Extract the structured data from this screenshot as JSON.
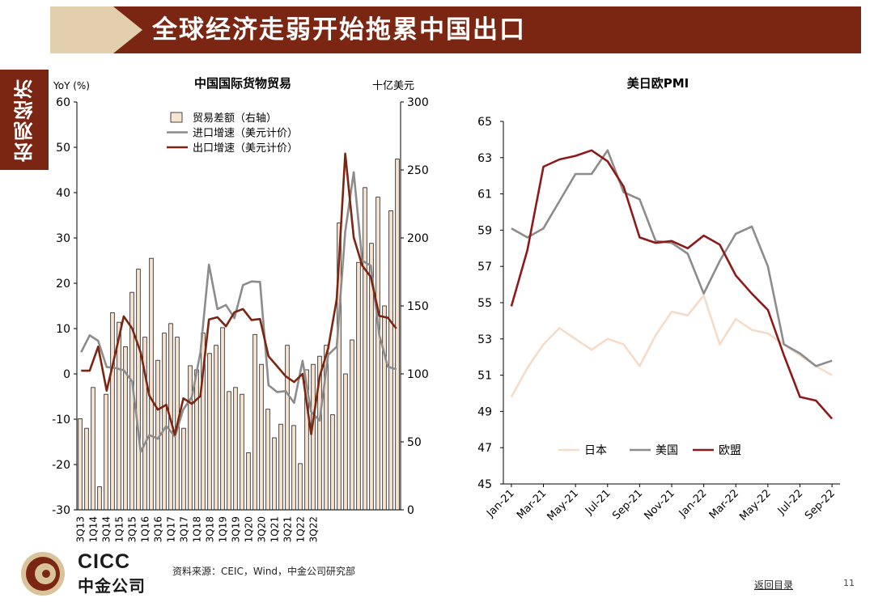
{
  "header": {
    "title": "全球经济走弱开始拖累中国出口"
  },
  "sidebar": {
    "label": "宏观经济"
  },
  "footer": {
    "source": "资料来源：CEIC，Wind，中金公司研究部",
    "back_link": "返回目录",
    "page_number": "11"
  },
  "logo": {
    "line1": "CICC",
    "line2": "中金公司"
  },
  "colors": {
    "brand": "#7b2612",
    "tan": "#e2cfae",
    "export": "#7b2612",
    "import": "#8c8c8c",
    "trade_bar": "#f8e3d0",
    "japan": "#f5dcc8",
    "usa": "#8c8c8c",
    "eu": "#8c1a1a"
  },
  "chart_data": [
    {
      "type": "bar+line",
      "title": "中国国际货物贸易",
      "ylabel_left": "YoY (%)",
      "ylabel_right": "十亿美元",
      "ylim_left": [
        -30,
        60
      ],
      "ylim_right": [
        0,
        300
      ],
      "yticks_left": [
        "-30",
        "-20",
        "-10",
        "0",
        "10",
        "20",
        "30",
        "40",
        "50",
        "60"
      ],
      "yticks_right": [
        "0",
        "50",
        "100",
        "150",
        "200",
        "250",
        "300"
      ],
      "xticks": [
        "3Q13",
        "1Q14",
        "3Q14",
        "1Q15",
        "3Q15",
        "1Q16",
        "3Q16",
        "1Q17",
        "3Q17",
        "1Q18",
        "3Q18",
        "1Q19",
        "3Q19",
        "1Q20",
        "3Q20",
        "1Q21",
        "3Q21",
        "1Q22",
        "3Q22"
      ],
      "legend": [
        "贸易差额（右轴）",
        "进口增速（美元计价）",
        "出口增速（美元计价）"
      ],
      "series": [
        {
          "name": "贸易差额（右轴）",
          "kind": "bar",
          "values": [
            67,
            60,
            90,
            17,
            85,
            145,
            138,
            120,
            160,
            177,
            127,
            185,
            110,
            130,
            137,
            127,
            60,
            106,
            103,
            130,
            115,
            121,
            134,
            87,
            90,
            85,
            42,
            129,
            107,
            74,
            53,
            63,
            121,
            62,
            34,
            103,
            107,
            113,
            121,
            70,
            211,
            100,
            125,
            182,
            237,
            196,
            230,
            150,
            220,
            258
          ]
        },
        {
          "name": "进口增速（美元计价）",
          "kind": "line",
          "values": [
            4.8,
            8.5,
            7.3,
            1.5,
            1.3,
            0.8,
            -1.7,
            -17.2,
            -13.5,
            -14.3,
            -11.5,
            -13.8,
            -7.8,
            -5.1,
            4.7,
            24.1,
            14.3,
            15.2,
            12.3,
            19.6,
            20.4,
            20.3,
            -2.5,
            -4.0,
            -3.8,
            -6.4,
            2.9,
            -8.4,
            -10.3,
            4.2,
            6.0,
            31.4,
            44.5,
            25.0,
            23.9,
            8.6,
            1.6,
            1.0
          ]
        },
        {
          "name": "出口增速（美元计价）",
          "kind": "line",
          "values": [
            0.7,
            0.7,
            6.0,
            -3.7,
            4.4,
            12.7,
            10.0,
            4.7,
            -4.8,
            -7.9,
            -6.8,
            -13.4,
            -5.4,
            -6.6,
            -4.9,
            12.0,
            12.5,
            10.5,
            13.6,
            14.3,
            11.9,
            12.1,
            3.9,
            1.7,
            -0.5,
            -1.8,
            0.0,
            -13.3,
            -0.6,
            5.6,
            16.5,
            48.6,
            30.1,
            23.9,
            21.4,
            12.8,
            12.4,
            10.0
          ]
        }
      ]
    },
    {
      "type": "line",
      "title": "美日欧PMI",
      "ylim": [
        45,
        65
      ],
      "yticks": [
        "45",
        "47",
        "49",
        "51",
        "53",
        "55",
        "57",
        "59",
        "61",
        "63",
        "65"
      ],
      "xticks": [
        "Jan-21",
        "Mar-21",
        "May-21",
        "Jul-21",
        "Sep-21",
        "Nov-21",
        "Jan-22",
        "Mar-22",
        "May-22",
        "Jul-22",
        "Sep-22"
      ],
      "legend": [
        "日本",
        "美国",
        "欧盟"
      ],
      "series": [
        {
          "name": "日本",
          "values": [
            49.8,
            51.4,
            52.7,
            53.6,
            53.0,
            52.4,
            53.0,
            52.7,
            51.5,
            53.2,
            54.5,
            54.3,
            55.4,
            52.7,
            54.1,
            53.5,
            53.3,
            52.7,
            52.1,
            51.5,
            51.0
          ]
        },
        {
          "name": "美国",
          "values": [
            59.1,
            58.6,
            59.1,
            60.6,
            62.1,
            62.1,
            63.4,
            61.1,
            60.7,
            58.4,
            58.3,
            57.7,
            55.5,
            57.3,
            58.8,
            59.2,
            57.0,
            52.7,
            52.2,
            51.5,
            51.8
          ]
        },
        {
          "name": "欧盟",
          "values": [
            54.8,
            57.9,
            62.5,
            62.9,
            63.1,
            63.4,
            62.8,
            61.4,
            58.6,
            58.3,
            58.4,
            58.0,
            58.7,
            58.2,
            56.5,
            55.5,
            54.6,
            52.1,
            49.8,
            49.6,
            48.6
          ]
        }
      ]
    }
  ]
}
